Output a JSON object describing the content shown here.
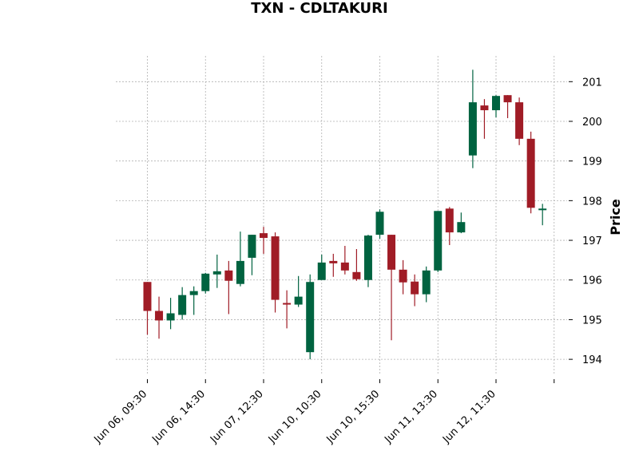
{
  "chart_data": {
    "type": "candlestick",
    "title": "TXN - CDLTAKURI",
    "ylabel": "Price",
    "xlabel": "",
    "ylim": [
      193.6,
      201.65
    ],
    "grid": true,
    "y_ticks": [
      194,
      195,
      196,
      197,
      198,
      199,
      200,
      201
    ],
    "x_tick_labels": [
      {
        "index": 0,
        "label": "Jun 06, 09:30"
      },
      {
        "index": 5,
        "label": "Jun 06, 14:30"
      },
      {
        "index": 10,
        "label": "Jun 07, 12:30"
      },
      {
        "index": 15,
        "label": "Jun 10, 10:30"
      },
      {
        "index": 20,
        "label": "Jun 10, 15:30"
      },
      {
        "index": 25,
        "label": "Jun 11, 13:30"
      },
      {
        "index": 30,
        "label": "Jun 12, 11:30"
      },
      {
        "index": 35,
        "label": ""
      }
    ],
    "colors": {
      "up": "#006340",
      "down": "#a01c26"
    },
    "candles": [
      {
        "open": 195.95,
        "high": 195.95,
        "low": 194.62,
        "close": 195.22
      },
      {
        "open": 195.22,
        "high": 195.58,
        "low": 194.52,
        "close": 194.98
      },
      {
        "open": 194.98,
        "high": 195.55,
        "low": 194.76,
        "close": 195.16
      },
      {
        "open": 195.12,
        "high": 195.82,
        "low": 195.0,
        "close": 195.62
      },
      {
        "open": 195.62,
        "high": 195.84,
        "low": 195.12,
        "close": 195.72
      },
      {
        "open": 195.72,
        "high": 196.18,
        "low": 195.66,
        "close": 196.16
      },
      {
        "open": 196.14,
        "high": 196.64,
        "low": 195.8,
        "close": 196.22
      },
      {
        "open": 196.24,
        "high": 196.48,
        "low": 195.14,
        "close": 195.98
      },
      {
        "open": 195.9,
        "high": 197.22,
        "low": 195.84,
        "close": 196.48
      },
      {
        "open": 196.56,
        "high": 197.14,
        "low": 196.12,
        "close": 197.14
      },
      {
        "open": 197.18,
        "high": 197.34,
        "low": 196.66,
        "close": 197.06
      },
      {
        "open": 197.1,
        "high": 197.2,
        "low": 195.18,
        "close": 195.5
      },
      {
        "open": 195.42,
        "high": 195.74,
        "low": 194.78,
        "close": 195.38
      },
      {
        "open": 195.38,
        "high": 196.1,
        "low": 195.32,
        "close": 195.58
      },
      {
        "open": 194.18,
        "high": 196.14,
        "low": 194.0,
        "close": 195.95
      },
      {
        "open": 196.0,
        "high": 196.64,
        "low": 196.0,
        "close": 196.44
      },
      {
        "open": 196.48,
        "high": 196.66,
        "low": 196.08,
        "close": 196.42
      },
      {
        "open": 196.44,
        "high": 196.86,
        "low": 196.14,
        "close": 196.24
      },
      {
        "open": 196.2,
        "high": 196.78,
        "low": 195.98,
        "close": 196.02
      },
      {
        "open": 196.0,
        "high": 197.14,
        "low": 195.82,
        "close": 197.12
      },
      {
        "open": 197.14,
        "high": 197.78,
        "low": 197.04,
        "close": 197.72
      },
      {
        "open": 197.14,
        "high": 197.14,
        "low": 194.48,
        "close": 196.26
      },
      {
        "open": 196.26,
        "high": 196.5,
        "low": 195.64,
        "close": 195.94
      },
      {
        "open": 195.96,
        "high": 196.14,
        "low": 195.34,
        "close": 195.64
      },
      {
        "open": 195.64,
        "high": 196.34,
        "low": 195.44,
        "close": 196.24
      },
      {
        "open": 196.24,
        "high": 197.74,
        "low": 196.2,
        "close": 197.74
      },
      {
        "open": 197.8,
        "high": 197.84,
        "low": 196.88,
        "close": 197.2
      },
      {
        "open": 197.2,
        "high": 197.7,
        "low": 197.18,
        "close": 197.46
      },
      {
        "open": 199.14,
        "high": 201.3,
        "low": 198.82,
        "close": 200.48
      },
      {
        "open": 200.4,
        "high": 200.56,
        "low": 199.56,
        "close": 200.28
      },
      {
        "open": 200.28,
        "high": 200.66,
        "low": 200.1,
        "close": 200.64
      },
      {
        "open": 200.66,
        "high": 200.66,
        "low": 200.08,
        "close": 200.48
      },
      {
        "open": 200.48,
        "high": 200.6,
        "low": 199.4,
        "close": 199.56
      },
      {
        "open": 199.56,
        "high": 199.74,
        "low": 197.68,
        "close": 197.82
      },
      {
        "open": 197.8,
        "high": 197.92,
        "low": 197.38,
        "close": 197.8
      }
    ]
  }
}
